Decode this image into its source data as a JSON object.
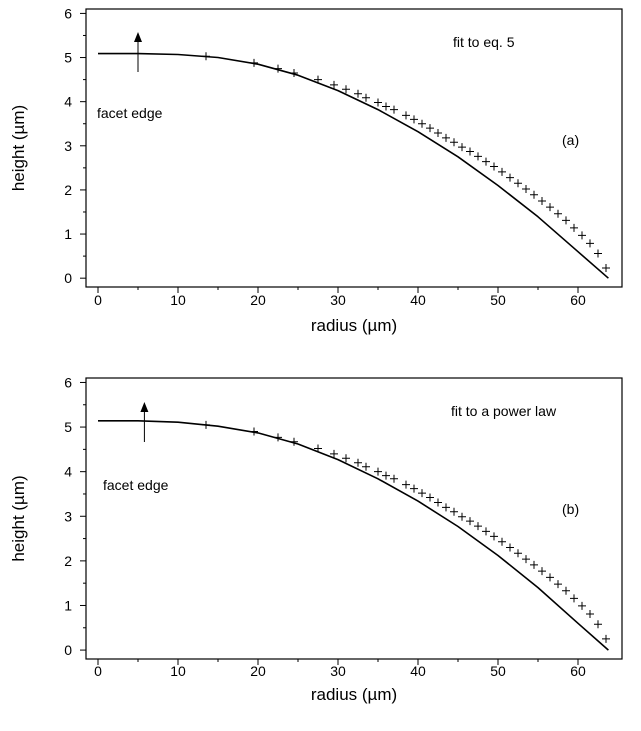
{
  "chart_data": [
    {
      "type": "line",
      "title": "",
      "xlabel": "radius (µm)",
      "ylabel": "height (µm)",
      "xlim": [
        -1.5,
        65.5
      ],
      "ylim": [
        -0.2,
        6.1
      ],
      "xticks": [
        0,
        10,
        20,
        30,
        40,
        50,
        60
      ],
      "yticks": [
        0,
        1,
        2,
        3,
        4,
        5,
        6
      ],
      "grid": false,
      "legend": "none",
      "colors": {
        "line": "#000000",
        "markers": "#000000"
      },
      "fit_text": "fit to eq. 5",
      "panel_label": "(a)",
      "facet_label": "facet edge",
      "facet_radius": 5,
      "series": [
        {
          "style": "line",
          "x": [
            0,
            5,
            10,
            15,
            20,
            25,
            30,
            35,
            40,
            45,
            50,
            55,
            60,
            63.8
          ],
          "values": [
            5.09,
            5.09,
            5.07,
            5.0,
            4.85,
            4.6,
            4.25,
            3.82,
            3.32,
            2.75,
            2.1,
            1.39,
            0.6,
            0.0
          ]
        },
        {
          "style": "markers",
          "x": [
            13.5,
            19.5,
            22.5,
            24.5,
            27.5,
            29.5,
            31,
            32.5,
            33.5,
            35,
            36,
            37,
            38.5,
            39.5,
            40.5,
            41.5,
            42.5,
            43.5,
            44.5,
            45.5,
            46.5,
            47.5,
            48.5,
            49.5,
            50.5,
            51.5,
            52.5,
            53.5,
            54.5,
            55.5,
            56.5,
            57.5,
            58.5,
            59.5,
            60.5,
            61.5,
            62.5,
            63.5
          ],
          "values": [
            5.03,
            4.88,
            4.75,
            4.65,
            4.5,
            4.38,
            4.28,
            4.18,
            4.09,
            3.98,
            3.89,
            3.82,
            3.69,
            3.6,
            3.5,
            3.4,
            3.29,
            3.18,
            3.08,
            2.97,
            2.87,
            2.76,
            2.64,
            2.53,
            2.41,
            2.28,
            2.15,
            2.02,
            1.89,
            1.75,
            1.61,
            1.46,
            1.31,
            1.14,
            0.97,
            0.79,
            0.56,
            0.23
          ]
        }
      ]
    },
    {
      "type": "line",
      "title": "",
      "xlabel": "radius (µm)",
      "ylabel": "height (µm)",
      "xlim": [
        -1.5,
        65.5
      ],
      "ylim": [
        -0.2,
        6.1
      ],
      "xticks": [
        0,
        10,
        20,
        30,
        40,
        50,
        60
      ],
      "yticks": [
        0,
        1,
        2,
        3,
        4,
        5,
        6
      ],
      "grid": false,
      "legend": "none",
      "colors": {
        "line": "#000000",
        "markers": "#000000"
      },
      "fit_text": "fit to a power law",
      "panel_label": "(b)",
      "facet_label": "facet edge",
      "facet_radius": 5.8,
      "series": [
        {
          "style": "line",
          "x": [
            0,
            5,
            10,
            15,
            20,
            25,
            30,
            35,
            40,
            45,
            50,
            55,
            60,
            63.8
          ],
          "values": [
            5.14,
            5.14,
            5.11,
            5.02,
            4.87,
            4.62,
            4.27,
            3.84,
            3.34,
            2.77,
            2.12,
            1.4,
            0.6,
            0.0
          ]
        },
        {
          "style": "markers",
          "x": [
            13.5,
            19.5,
            22.5,
            24.5,
            27.5,
            29.5,
            31,
            32.5,
            33.5,
            35,
            36,
            37,
            38.5,
            39.5,
            40.5,
            41.5,
            42.5,
            43.5,
            44.5,
            45.5,
            46.5,
            47.5,
            48.5,
            49.5,
            50.5,
            51.5,
            52.5,
            53.5,
            54.5,
            55.5,
            56.5,
            57.5,
            58.5,
            59.5,
            60.5,
            61.5,
            62.5,
            63.5
          ],
          "values": [
            5.05,
            4.9,
            4.77,
            4.67,
            4.52,
            4.4,
            4.3,
            4.2,
            4.11,
            4.0,
            3.91,
            3.84,
            3.71,
            3.62,
            3.52,
            3.42,
            3.31,
            3.2,
            3.1,
            2.99,
            2.89,
            2.78,
            2.66,
            2.55,
            2.43,
            2.3,
            2.17,
            2.04,
            1.91,
            1.77,
            1.63,
            1.48,
            1.33,
            1.16,
            0.99,
            0.81,
            0.58,
            0.25
          ]
        }
      ]
    }
  ]
}
